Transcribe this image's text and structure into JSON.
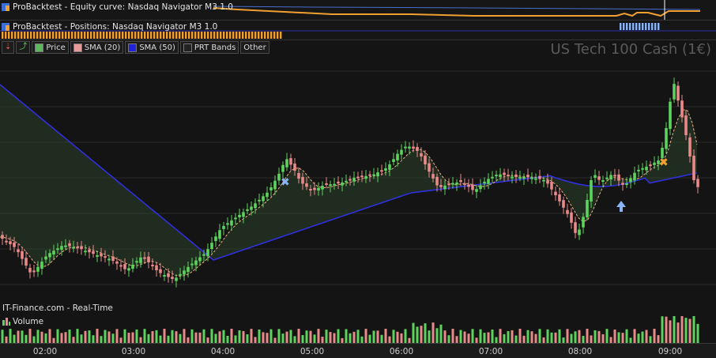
{
  "equity_panel": {
    "label": "ProBacktest - Equity curve: Nasdaq Navigator M3 1.0"
  },
  "positions_panel": {
    "label": "ProBacktest - Positions: Nasdaq Navigator M3 1.0"
  },
  "toolbar": {
    "items": [
      {
        "name": "download-button",
        "label": "",
        "icon": "download-icon"
      },
      {
        "name": "add-indicator-button",
        "label": "",
        "icon": "add-indicator-icon"
      },
      {
        "name": "legend-price",
        "label": "Price",
        "color": "#5cb85c"
      },
      {
        "name": "legend-sma-20",
        "label": "SMA (20)",
        "color": "#e69a9a"
      },
      {
        "name": "legend-sma-50",
        "label": "SMA (50)",
        "color": "#2222dd"
      },
      {
        "name": "legend-prt-bands",
        "label": "PRT Bands",
        "color": "#222222"
      },
      {
        "name": "legend-other",
        "label": "Other",
        "color": ""
      }
    ]
  },
  "instrument": {
    "title": "US Tech 100 Cash (1€)"
  },
  "footer": {
    "source": "IT-Finance.com - Real-Time"
  },
  "volume_panel": {
    "label": "Volume"
  },
  "time_axis": {
    "labels": [
      "02:00",
      "03:00",
      "04:00",
      "05:00",
      "06:00",
      "07:00",
      "08:00",
      "09:00"
    ]
  },
  "colors": {
    "bull": "#5cd35c",
    "bear": "#e88a8a",
    "sma20": "#f0b080",
    "sma50": "#3030dd",
    "equity": "#f0a030",
    "positions": "#8ab4f8",
    "entry_marker": "#8ab4f8",
    "exit_marker": "#f0a030"
  },
  "chart_data": {
    "type": "candlestick",
    "title": "US Tech 100 Cash (1€)",
    "x_ticks": [
      "02:00",
      "03:00",
      "04:00",
      "05:00",
      "06:00",
      "07:00",
      "08:00",
      "09:00"
    ],
    "series": [
      {
        "name": "Price"
      },
      {
        "name": "SMA (20)"
      },
      {
        "name": "SMA (50)"
      }
    ],
    "markers": [
      {
        "type": "exit",
        "symbol": "x",
        "time": "04:45"
      },
      {
        "type": "entry",
        "symbol": "arrow-up",
        "time": "08:45"
      },
      {
        "type": "exit",
        "symbol": "x",
        "time": "08:55"
      }
    ]
  }
}
